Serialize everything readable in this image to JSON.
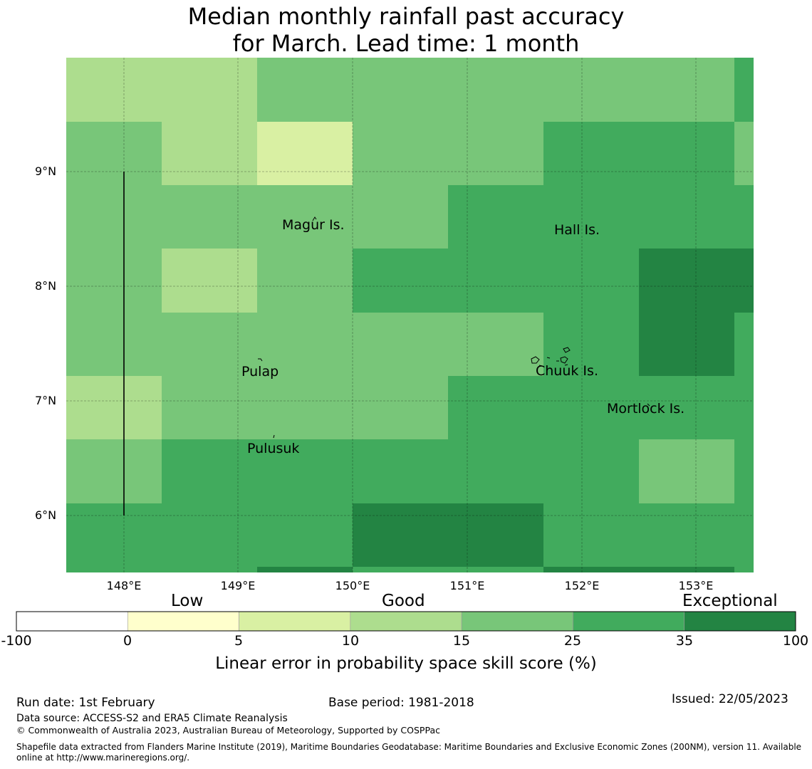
{
  "title": {
    "line1": "Median monthly rainfall past accuracy",
    "line2": "for March. Lead time: 1 month"
  },
  "map": {
    "lat_ticks": [
      "9°N",
      "8°N",
      "7°N",
      "6°N"
    ],
    "lon_ticks": [
      "148°E",
      "149°E",
      "150°E",
      "151°E",
      "152°E",
      "153°E"
    ],
    "places": [
      "Magur Is.",
      "Hall Is.",
      "Pulap",
      "Chuuk Is.",
      "Mortlock Is.",
      "Pulusuk"
    ],
    "skill_classes": [
      "5-10",
      "10-15",
      "15-25",
      "25-35",
      "35-100"
    ],
    "grid_rows": [
      [
        1,
        1,
        2,
        2,
        2,
        2,
        2,
        3
      ],
      [
        2,
        1,
        0,
        2,
        2,
        3,
        3,
        2
      ],
      [
        2,
        2,
        2,
        2,
        3,
        3,
        3,
        3
      ],
      [
        2,
        1,
        2,
        3,
        3,
        3,
        4,
        4
      ],
      [
        2,
        2,
        2,
        2,
        2,
        3,
        4,
        3
      ],
      [
        1,
        2,
        2,
        2,
        3,
        3,
        3,
        3
      ],
      [
        2,
        3,
        3,
        3,
        3,
        3,
        2,
        3
      ],
      [
        3,
        3,
        3,
        4,
        4,
        3,
        3,
        3
      ],
      [
        3,
        3,
        4,
        3,
        3,
        4,
        4,
        3
      ]
    ]
  },
  "legend": {
    "categories": [
      "Low",
      "Good",
      "Exceptional"
    ],
    "ticks": [
      "-100",
      "0",
      "5",
      "10",
      "15",
      "25",
      "35",
      "100"
    ],
    "colors": [
      "#ffffff",
      "#ffffcc",
      "#d9f0a3",
      "#addd8e",
      "#78c679",
      "#41ab5d",
      "#238443"
    ],
    "title": "Linear error in probability space skill score (%)"
  },
  "footer": {
    "run_date": "Run date: 1st February",
    "base_period": "Base period: 1981-2018",
    "issued": "Issued: 22/05/2023",
    "data_source": "Data source: ACCESS-S2 and ERA5 Climate Reanalysis",
    "copyright": "© Commonwealth of Australia 2023, Australian Bureau of Meteorology, Supported by COSPPac",
    "shapefile_line1": "Shapefile data extracted from Flanders Marine Institute (2019), Maritime Boundaries Geodatabase: Maritime Boundaries and Exclusive Economic Zones (200NM), version 11. Available",
    "shapefile_line2": "online at http://www.marineregions.org/."
  }
}
